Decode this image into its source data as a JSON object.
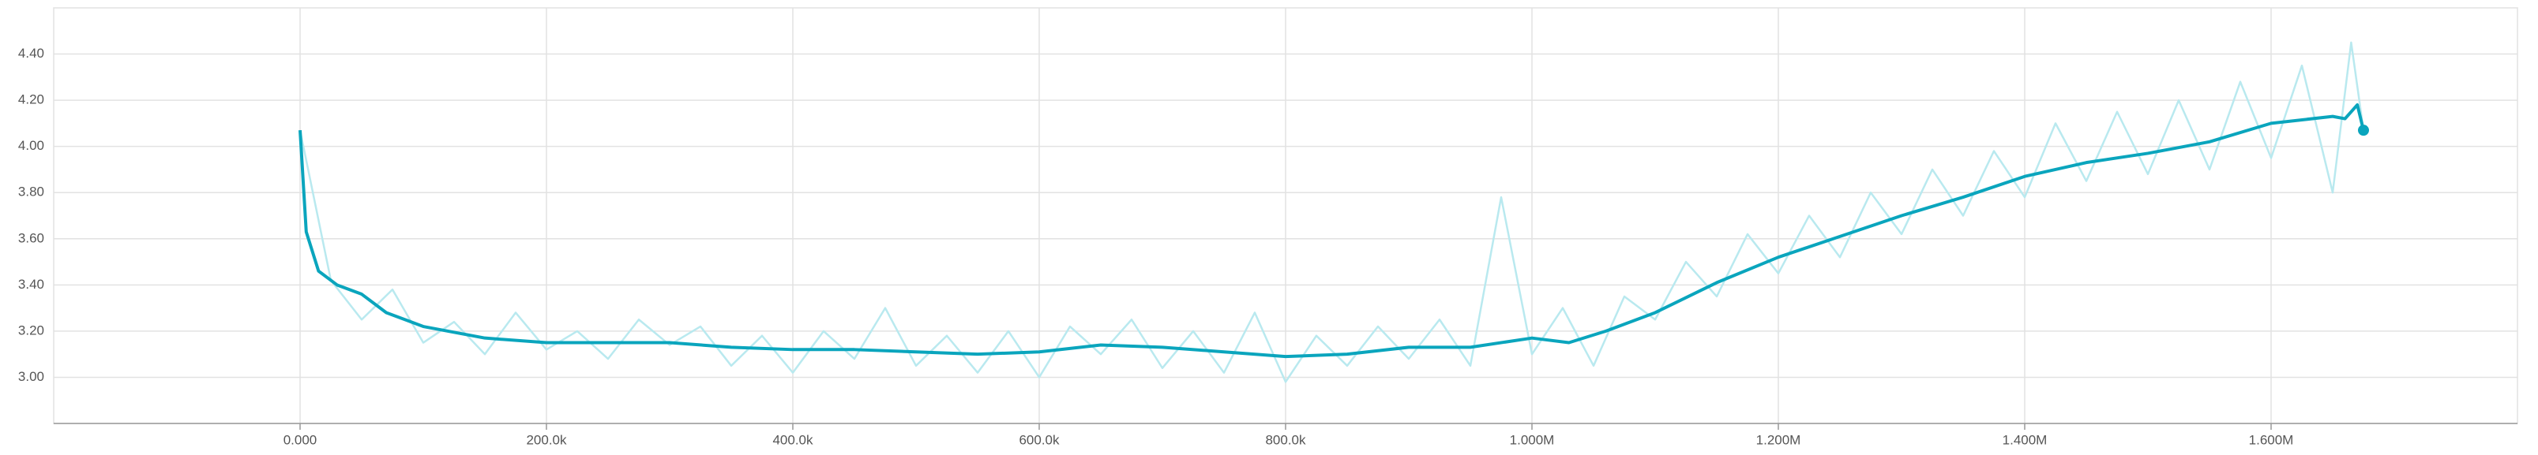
{
  "chart_data": {
    "type": "line",
    "xlim": [
      -200000,
      1800000
    ],
    "xticks": [
      {
        "value": 0,
        "label": "0.000"
      },
      {
        "value": 200000,
        "label": "200.0k"
      },
      {
        "value": 400000,
        "label": "400.0k"
      },
      {
        "value": 600000,
        "label": "600.0k"
      },
      {
        "value": 800000,
        "label": "800.0k"
      },
      {
        "value": 1000000,
        "label": "1.000M"
      },
      {
        "value": 1200000,
        "label": "1.200M"
      },
      {
        "value": 1400000,
        "label": "1.400M"
      },
      {
        "value": 1600000,
        "label": "1.600M"
      }
    ],
    "ylim": [
      2.8,
      4.6
    ],
    "yticks": [
      {
        "value": 3.0,
        "label": "3.00"
      },
      {
        "value": 3.2,
        "label": "3.20"
      },
      {
        "value": 3.4,
        "label": "3.40"
      },
      {
        "value": 3.6,
        "label": "3.60"
      },
      {
        "value": 3.8,
        "label": "3.80"
      },
      {
        "value": 4.0,
        "label": "4.00"
      },
      {
        "value": 4.2,
        "label": "4.20"
      },
      {
        "value": 4.4,
        "label": "4.40"
      }
    ],
    "grid": true,
    "series": [
      {
        "color": "#0aa5bd",
        "x": [
          0,
          5000,
          15000,
          30000,
          50000,
          70000,
          100000,
          150000,
          200000,
          250000,
          300000,
          350000,
          400000,
          450000,
          500000,
          550000,
          600000,
          650000,
          700000,
          750000,
          800000,
          850000,
          900000,
          950000,
          1000000,
          1030000,
          1060000,
          1100000,
          1150000,
          1200000,
          1250000,
          1300000,
          1350000,
          1400000,
          1450000,
          1500000,
          1550000,
          1600000,
          1650000,
          1660000,
          1670000,
          1675000
        ],
        "values": [
          4.07,
          3.63,
          3.46,
          3.4,
          3.36,
          3.28,
          3.22,
          3.17,
          3.15,
          3.15,
          3.15,
          3.13,
          3.12,
          3.12,
          3.11,
          3.1,
          3.11,
          3.14,
          3.13,
          3.11,
          3.09,
          3.1,
          3.13,
          3.13,
          3.17,
          3.15,
          3.2,
          3.28,
          3.41,
          3.52,
          3.61,
          3.7,
          3.78,
          3.87,
          3.93,
          3.97,
          4.02,
          4.1,
          4.13,
          4.12,
          4.18,
          4.07
        ]
      },
      {
        "color": "#b9e9ef",
        "x": [
          0,
          25000,
          50000,
          75000,
          100000,
          125000,
          150000,
          175000,
          200000,
          225000,
          250000,
          275000,
          300000,
          325000,
          350000,
          375000,
          400000,
          425000,
          450000,
          475000,
          500000,
          525000,
          550000,
          575000,
          600000,
          625000,
          650000,
          675000,
          700000,
          725000,
          750000,
          775000,
          800000,
          825000,
          850000,
          875000,
          900000,
          925000,
          950000,
          975000,
          1000000,
          1025000,
          1050000,
          1075000,
          1100000,
          1125000,
          1150000,
          1175000,
          1200000,
          1225000,
          1250000,
          1275000,
          1300000,
          1325000,
          1350000,
          1375000,
          1400000,
          1425000,
          1450000,
          1475000,
          1500000,
          1525000,
          1550000,
          1575000,
          1600000,
          1625000,
          1650000,
          1665000,
          1675000
        ],
        "values": [
          4.07,
          3.42,
          3.25,
          3.38,
          3.15,
          3.24,
          3.1,
          3.28,
          3.12,
          3.2,
          3.08,
          3.25,
          3.14,
          3.22,
          3.05,
          3.18,
          3.02,
          3.2,
          3.08,
          3.3,
          3.05,
          3.18,
          3.02,
          3.2,
          3.0,
          3.22,
          3.1,
          3.25,
          3.04,
          3.2,
          3.02,
          3.28,
          2.98,
          3.18,
          3.05,
          3.22,
          3.08,
          3.25,
          3.05,
          3.78,
          3.1,
          3.3,
          3.05,
          3.35,
          3.25,
          3.5,
          3.35,
          3.62,
          3.45,
          3.7,
          3.52,
          3.8,
          3.62,
          3.9,
          3.7,
          3.98,
          3.78,
          4.1,
          3.85,
          4.15,
          3.88,
          4.2,
          3.9,
          4.28,
          3.95,
          4.35,
          3.8,
          4.45,
          4.07
        ]
      }
    ]
  }
}
